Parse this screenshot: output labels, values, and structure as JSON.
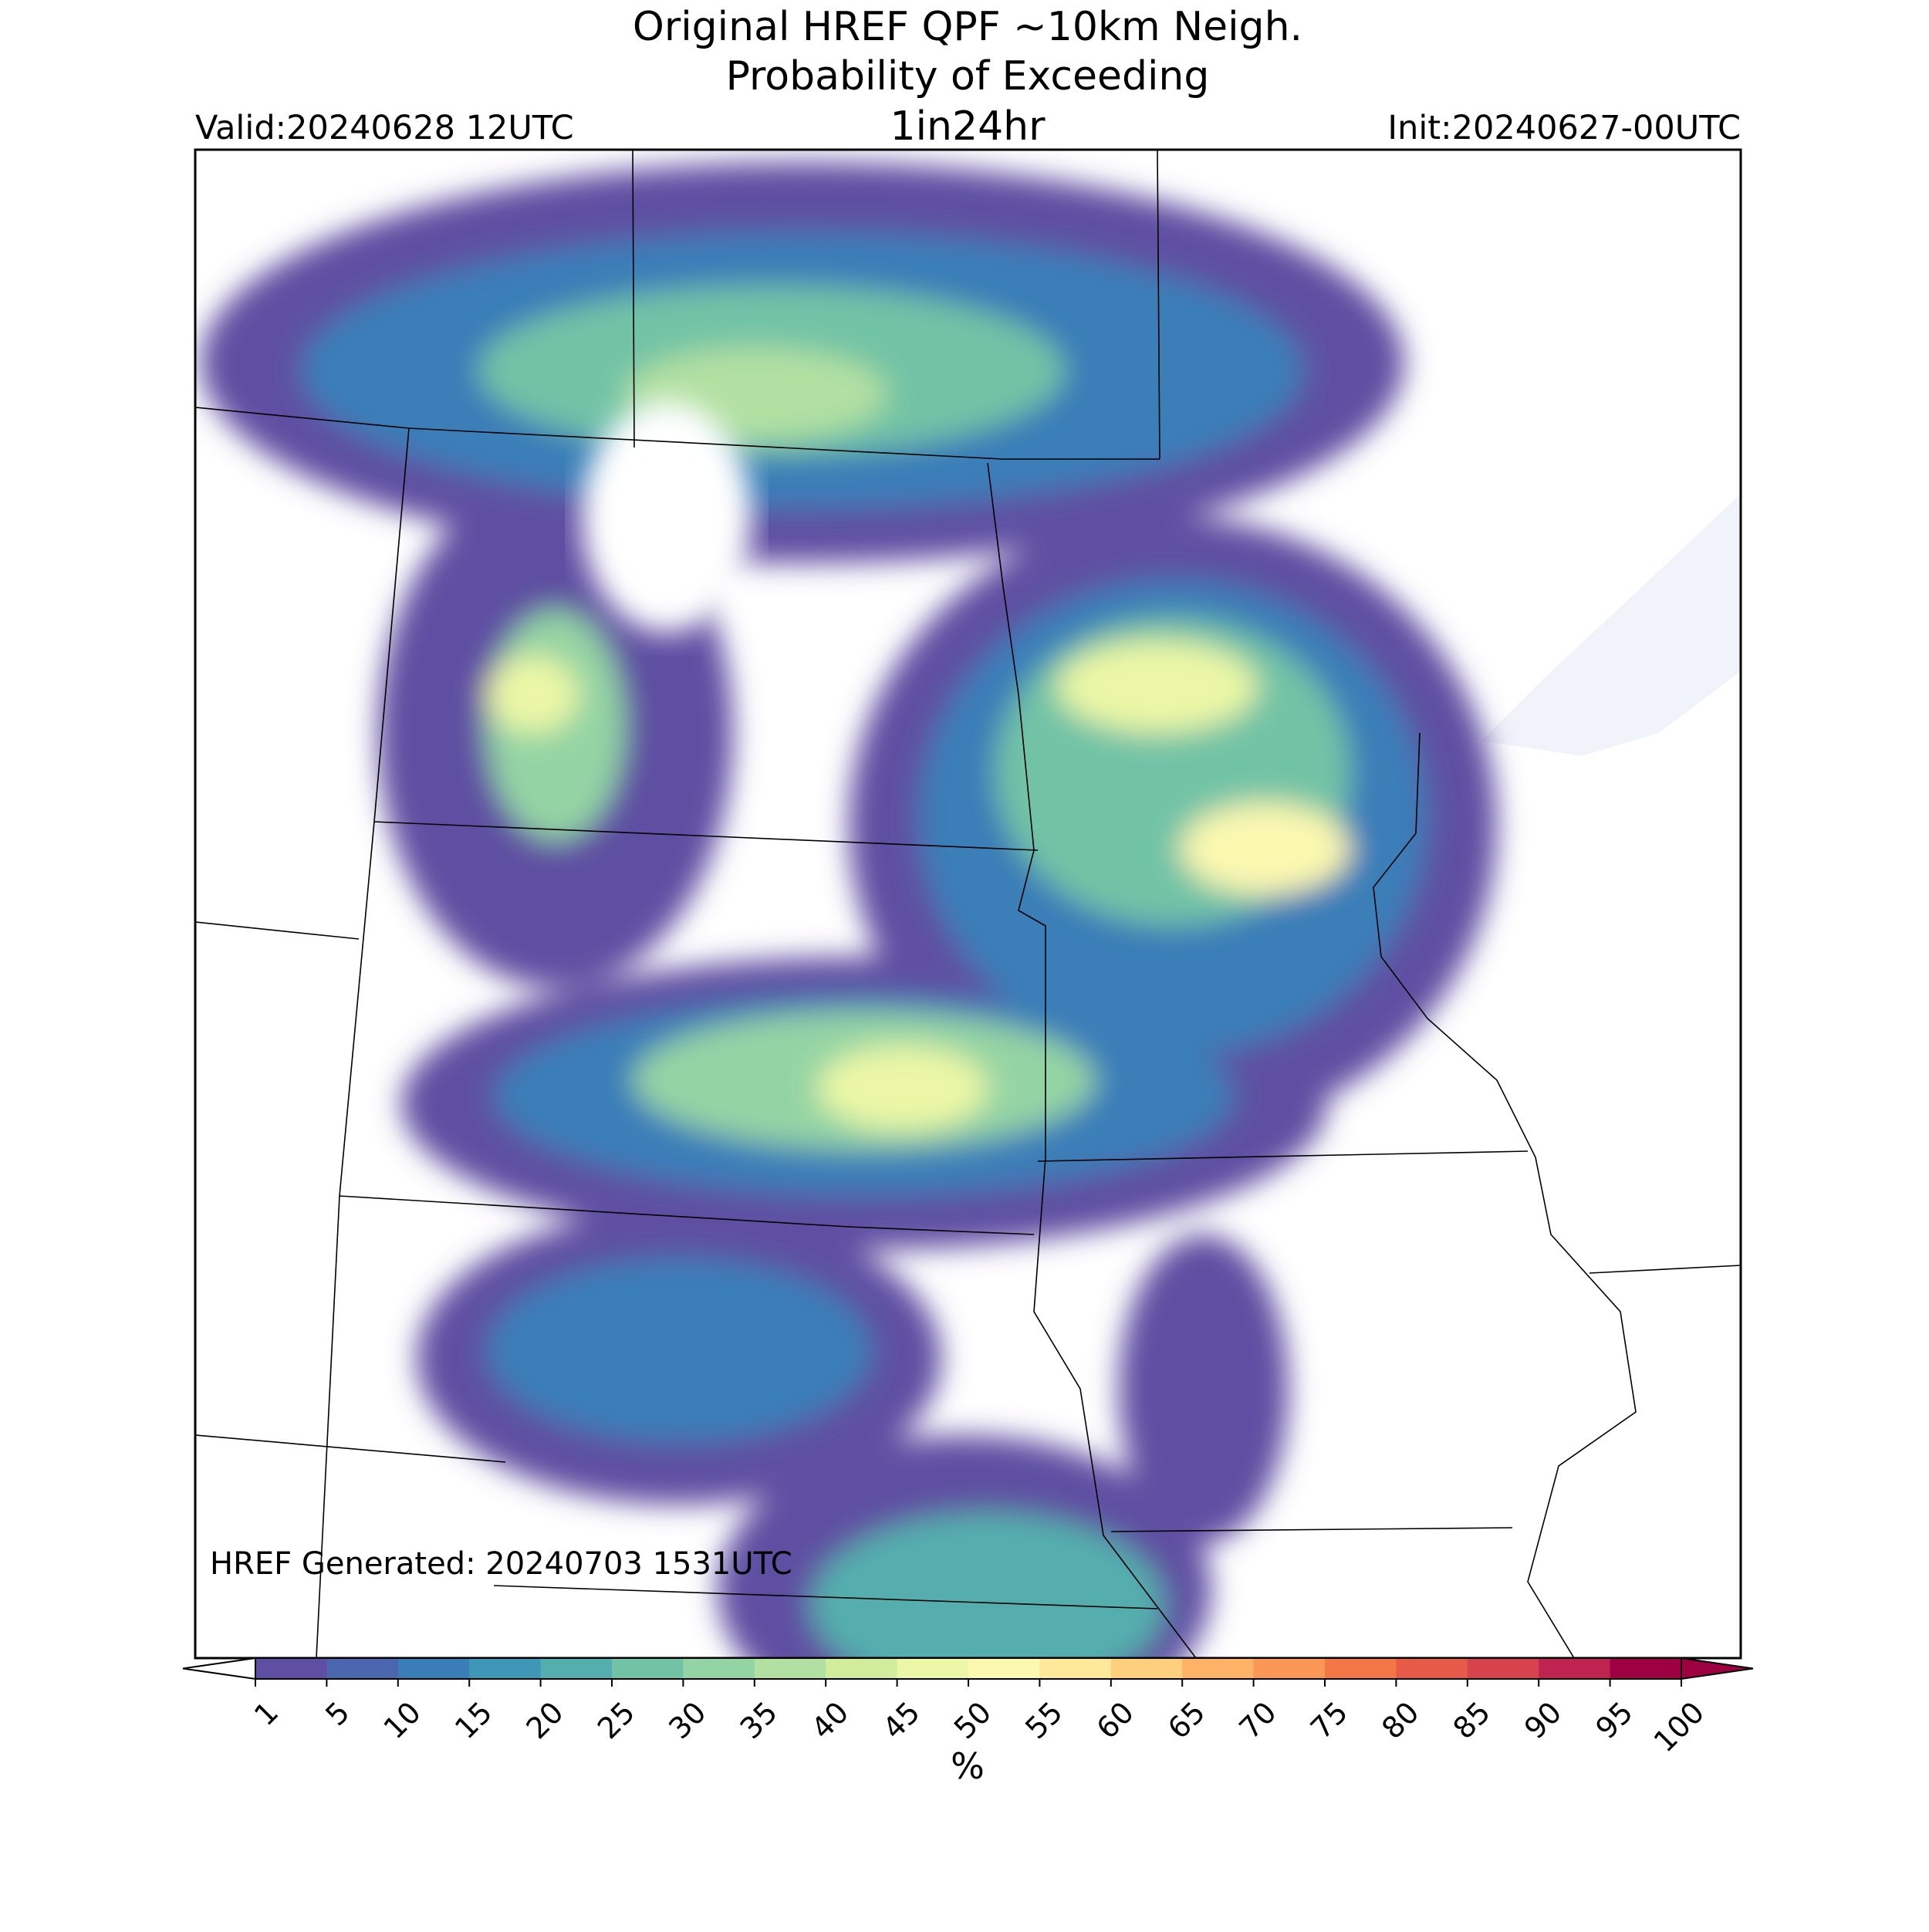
{
  "header": {
    "title_line1": "Original HREF QPF ~10km Neigh.",
    "title_line2": "Probability of Exceeding",
    "title_line3": "1in24hr",
    "valid": "Valid:20240628 12UTC",
    "init": "Init:20240627-00UTC"
  },
  "map": {
    "generated": "HREF Generated: 20240703 1531UTC"
  },
  "colorbar": {
    "label": "%",
    "levels": [
      1,
      5,
      10,
      15,
      20,
      25,
      30,
      35,
      40,
      45,
      50,
      55,
      60,
      65,
      70,
      75,
      80,
      85,
      90,
      95,
      100
    ],
    "colors": [
      "#5e4fa2",
      "#4a66ae",
      "#3a7eb8",
      "#3f97b7",
      "#54aead",
      "#72c3a6",
      "#94d4a4",
      "#b2e0a2",
      "#d1ed9c",
      "#ebf7a6",
      "#fbf8b0",
      "#fee89a",
      "#fed07e",
      "#fdb366",
      "#fa9656",
      "#f47748",
      "#e75a47",
      "#d6434d",
      "#bf2451",
      "#9e0142"
    ]
  }
}
